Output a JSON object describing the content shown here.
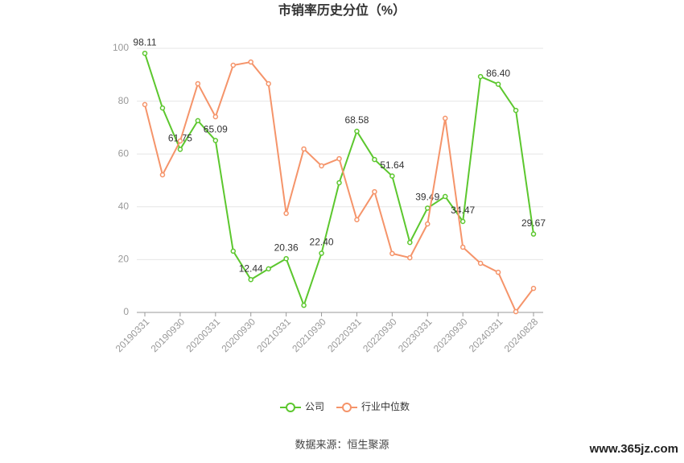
{
  "chart_data": {
    "type": "line",
    "title": "市销率历史分位（%）",
    "categories": [
      "20190331",
      null,
      "20190930",
      null,
      "20200331",
      null,
      "20200930",
      null,
      "20210331",
      null,
      "20210930",
      null,
      "20220331",
      null,
      "20220930",
      null,
      "20230331",
      null,
      "20230930",
      null,
      "20240331",
      null,
      "20240828"
    ],
    "series": [
      {
        "name": "公司",
        "color": "#5cc72e",
        "values": [
          98.11,
          77.4,
          61.75,
          72.6,
          65.09,
          23.2,
          12.44,
          16.5,
          20.36,
          2.7,
          22.4,
          49.1,
          68.58,
          57.9,
          51.64,
          26.5,
          39.49,
          43.9,
          34.47,
          89.3,
          86.4,
          76.5,
          29.67
        ],
        "value_labels": [
          "98.11",
          null,
          "61.75",
          null,
          "65.09",
          null,
          "12.44",
          null,
          "20.36",
          null,
          "22.40",
          null,
          "68.58",
          null,
          "51.64",
          null,
          "39.49",
          null,
          "34.47",
          null,
          "86.40",
          null,
          "29.67"
        ]
      },
      {
        "name": "行业中位数",
        "color": "#f5946a",
        "values": [
          78.7,
          52.1,
          64.9,
          86.6,
          74.1,
          93.6,
          94.8,
          86.6,
          37.5,
          61.9,
          55.5,
          58.2,
          35.1,
          45.7,
          22.3,
          20.7,
          33.5,
          73.5,
          24.7,
          18.6,
          15.2,
          0.3,
          9.1
        ]
      }
    ],
    "ylim": [
      0,
      100
    ],
    "yticks": [
      0,
      20,
      40,
      60,
      80,
      100
    ],
    "grid": true,
    "legend": "bottom",
    "source": "数据来源：恒生聚源",
    "watermark": "www.365jz.com"
  }
}
